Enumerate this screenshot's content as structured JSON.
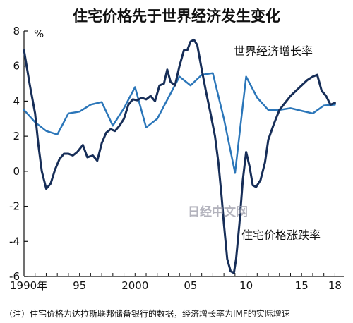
{
  "chart_data": {
    "type": "line",
    "title": "住宅价格先于世界经济发生变化",
    "ylabel": "%",
    "ylim": [
      -6,
      8
    ],
    "yticks": [
      {
        "v": 8,
        "label": "8"
      },
      {
        "v": 6,
        "label": "6"
      },
      {
        "v": 4,
        "label": "4"
      },
      {
        "v": 2,
        "label": "2"
      },
      {
        "v": 0,
        "label": "0"
      },
      {
        "v": -2,
        "label": "-2"
      },
      {
        "v": -4,
        "label": "-4"
      },
      {
        "v": -6,
        "label": "-6"
      }
    ],
    "xlim": [
      1990,
      2018.8
    ],
    "xticks": [
      {
        "v": 1990,
        "label": "1990年"
      },
      {
        "v": 1995,
        "label": "95"
      },
      {
        "v": 2000,
        "label": "2000"
      },
      {
        "v": 2005,
        "label": "05"
      },
      {
        "v": 2010,
        "label": "10"
      },
      {
        "v": 2015,
        "label": "15"
      },
      {
        "v": 2018,
        "label": "18"
      }
    ],
    "grid": false,
    "series": [
      {
        "name": "世界经济增长率",
        "color": "#2b76b9",
        "annotation": "世界经济增长率",
        "points": [
          [
            1990,
            3.5
          ],
          [
            1991,
            2.8
          ],
          [
            1992,
            2.3
          ],
          [
            1993,
            2.1
          ],
          [
            1994,
            3.3
          ],
          [
            1995,
            3.4
          ],
          [
            1996,
            3.8
          ],
          [
            1997,
            3.95
          ],
          [
            1998,
            2.6
          ],
          [
            1999,
            3.6
          ],
          [
            2000,
            4.8
          ],
          [
            2001,
            2.5
          ],
          [
            2002,
            3.0
          ],
          [
            2003,
            4.2
          ],
          [
            2004,
            5.4
          ],
          [
            2005,
            4.9
          ],
          [
            2006,
            5.5
          ],
          [
            2007,
            5.6
          ],
          [
            2008,
            3.0
          ],
          [
            2009,
            -0.1
          ],
          [
            2010,
            5.4
          ],
          [
            2011,
            4.2
          ],
          [
            2012,
            3.5
          ],
          [
            2013,
            3.5
          ],
          [
            2014,
            3.6
          ],
          [
            2015,
            3.45
          ],
          [
            2016,
            3.3
          ],
          [
            2017,
            3.75
          ],
          [
            2018,
            3.8
          ]
        ]
      },
      {
        "name": "住宅价格涨跌率",
        "color": "#172e58",
        "annotation": "住宅价格涨跌率",
        "points": [
          [
            1990,
            6.9
          ],
          [
            1990.5,
            5.0
          ],
          [
            1991,
            3.3
          ],
          [
            1991.3,
            1.5
          ],
          [
            1991.6,
            0.0
          ],
          [
            1992,
            -1.0
          ],
          [
            1992.4,
            -0.7
          ],
          [
            1992.8,
            0.1
          ],
          [
            1993.2,
            0.7
          ],
          [
            1993.6,
            1.0
          ],
          [
            1994,
            1.0
          ],
          [
            1994.4,
            0.9
          ],
          [
            1994.8,
            1.1
          ],
          [
            1995.3,
            1.5
          ],
          [
            1995.7,
            0.8
          ],
          [
            1996.2,
            0.9
          ],
          [
            1996.6,
            0.6
          ],
          [
            1997,
            1.6
          ],
          [
            1997.4,
            2.2
          ],
          [
            1997.8,
            2.4
          ],
          [
            1998.2,
            2.3
          ],
          [
            1998.6,
            2.6
          ],
          [
            1999,
            3.0
          ],
          [
            1999.4,
            3.8
          ],
          [
            1999.8,
            4.1
          ],
          [
            2000.2,
            4.05
          ],
          [
            2000.6,
            4.2
          ],
          [
            2001,
            4.1
          ],
          [
            2001.4,
            4.3
          ],
          [
            2001.8,
            4.0
          ],
          [
            2002.2,
            4.9
          ],
          [
            2002.6,
            5.0
          ],
          [
            2002.9,
            5.8
          ],
          [
            2003.2,
            5.1
          ],
          [
            2003.6,
            4.9
          ],
          [
            2004,
            6.0
          ],
          [
            2004.4,
            6.9
          ],
          [
            2004.7,
            6.9
          ],
          [
            2005,
            7.4
          ],
          [
            2005.3,
            7.5
          ],
          [
            2005.6,
            7.2
          ],
          [
            2006,
            5.8
          ],
          [
            2006.4,
            4.5
          ],
          [
            2006.8,
            3.3
          ],
          [
            2007.2,
            2.0
          ],
          [
            2007.5,
            0.5
          ],
          [
            2007.8,
            -1.5
          ],
          [
            2008,
            -3.0
          ],
          [
            2008.3,
            -5.0
          ],
          [
            2008.6,
            -5.7
          ],
          [
            2008.9,
            -5.8
          ],
          [
            2009.1,
            -5.0
          ],
          [
            2009.4,
            -3.0
          ],
          [
            2009.7,
            -0.5
          ],
          [
            2010,
            1.1
          ],
          [
            2010.3,
            0.3
          ],
          [
            2010.6,
            -0.8
          ],
          [
            2010.9,
            -0.9
          ],
          [
            2011.3,
            -0.5
          ],
          [
            2011.7,
            0.5
          ],
          [
            2012,
            1.8
          ],
          [
            2012.5,
            2.7
          ],
          [
            2013,
            3.5
          ],
          [
            2013.5,
            3.9
          ],
          [
            2014,
            4.3
          ],
          [
            2014.5,
            4.6
          ],
          [
            2015,
            4.9
          ],
          [
            2015.5,
            5.2
          ],
          [
            2016,
            5.4
          ],
          [
            2016.4,
            5.5
          ],
          [
            2016.8,
            4.6
          ],
          [
            2017.2,
            4.3
          ],
          [
            2017.6,
            3.8
          ],
          [
            2018,
            3.9
          ]
        ]
      }
    ],
    "footnote": "（注）住宅价格为达拉斯联邦储备银行的数据，经济增长率为IMF的实际增速",
    "watermark": "日经中文网"
  }
}
